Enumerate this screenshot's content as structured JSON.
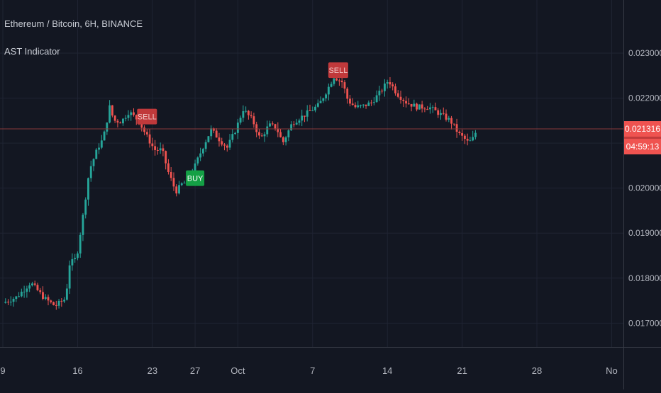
{
  "header": {
    "symbol_line": "Ethereum / Bitcoin, 6H, BINANCE",
    "indicator": "AST Indicator"
  },
  "colors": {
    "background": "#131722",
    "grid": "#1f2433",
    "up": "#26a69a",
    "down": "#ef5350",
    "text": "#b2b5be",
    "price_line": "#8a3a3a",
    "price_tag": "#ef5350",
    "buy_tag": "#14a045",
    "sell_tag": "#c0393b"
  },
  "chart_data": {
    "type": "candlestick",
    "y_axis": {
      "ticks": [
        0.017,
        0.018,
        0.019,
        0.02,
        0.021,
        0.022,
        0.023
      ],
      "tick_labels": [
        "0.017000",
        "0.018000",
        "0.019000",
        "0.020000",
        "0.021000",
        "0.022000",
        "0.023000"
      ],
      "range": [
        0.01647,
        0.02418
      ]
    },
    "x_axis": {
      "ticks": [
        {
          "day": 9,
          "label": "9"
        },
        {
          "day": 16,
          "label": "16"
        },
        {
          "day": 23,
          "label": "23"
        },
        {
          "day": 27,
          "label": "27"
        },
        {
          "day": 31,
          "label": "Oct"
        },
        {
          "day": 38,
          "label": "7"
        },
        {
          "day": 45,
          "label": "14"
        },
        {
          "day": 52,
          "label": "21"
        },
        {
          "day": 59,
          "label": "28"
        },
        {
          "day": 66,
          "label": "No"
        }
      ],
      "range": [
        9,
        66.7
      ]
    },
    "last_price": 0.021316,
    "last_price_label": "0.021316",
    "countdown": "04:59:13",
    "grid": true,
    "signals": [
      {
        "type": "SELL",
        "day": 22.5,
        "price": 0.02159
      },
      {
        "type": "BUY",
        "day": 27.0,
        "price": 0.02022
      },
      {
        "type": "SELL",
        "day": 40.4,
        "price": 0.02262
      }
    ],
    "anchors": [
      [
        9.0,
        0.01745
      ],
      [
        10.3,
        0.01758
      ],
      [
        11.6,
        0.0179
      ],
      [
        12.9,
        0.01755
      ],
      [
        13.9,
        0.01738
      ],
      [
        14.9,
        0.01755
      ],
      [
        15.2,
        0.0183
      ],
      [
        15.9,
        0.01845
      ],
      [
        16.5,
        0.01938
      ],
      [
        17.1,
        0.0204
      ],
      [
        17.9,
        0.0209
      ],
      [
        18.4,
        0.0211
      ],
      [
        19.0,
        0.0218
      ],
      [
        19.4,
        0.0215
      ],
      [
        20.1,
        0.02148
      ],
      [
        20.8,
        0.0217
      ],
      [
        21.7,
        0.0215
      ],
      [
        22.6,
        0.0211
      ],
      [
        23.2,
        0.02085
      ],
      [
        23.9,
        0.02085
      ],
      [
        24.5,
        0.02035
      ],
      [
        25.2,
        0.01992
      ],
      [
        25.8,
        0.0201
      ],
      [
        26.4,
        0.02015
      ],
      [
        27.0,
        0.0205
      ],
      [
        27.8,
        0.02095
      ],
      [
        28.5,
        0.0213
      ],
      [
        29.2,
        0.0211
      ],
      [
        30.0,
        0.0209
      ],
      [
        30.8,
        0.0213
      ],
      [
        31.5,
        0.02175
      ],
      [
        32.4,
        0.0215
      ],
      [
        33.1,
        0.02108
      ],
      [
        33.9,
        0.0214
      ],
      [
        34.6,
        0.02135
      ],
      [
        35.2,
        0.021
      ],
      [
        36.1,
        0.02145
      ],
      [
        37.4,
        0.02165
      ],
      [
        38.6,
        0.02185
      ],
      [
        39.4,
        0.0222
      ],
      [
        40.0,
        0.02248
      ],
      [
        40.8,
        0.02235
      ],
      [
        41.3,
        0.02195
      ],
      [
        42.0,
        0.0218
      ],
      [
        42.7,
        0.02182
      ],
      [
        43.5,
        0.0219
      ],
      [
        44.4,
        0.02215
      ],
      [
        45.1,
        0.0224
      ],
      [
        45.9,
        0.0221
      ],
      [
        46.8,
        0.0219
      ],
      [
        47.8,
        0.0218
      ],
      [
        48.9,
        0.0218
      ],
      [
        49.9,
        0.02165
      ],
      [
        50.9,
        0.0215
      ],
      [
        51.7,
        0.0212
      ],
      [
        52.2,
        0.0211
      ],
      [
        52.6,
        0.021
      ],
      [
        53.0,
        0.0211
      ],
      [
        53.4,
        0.02131
      ]
    ]
  }
}
